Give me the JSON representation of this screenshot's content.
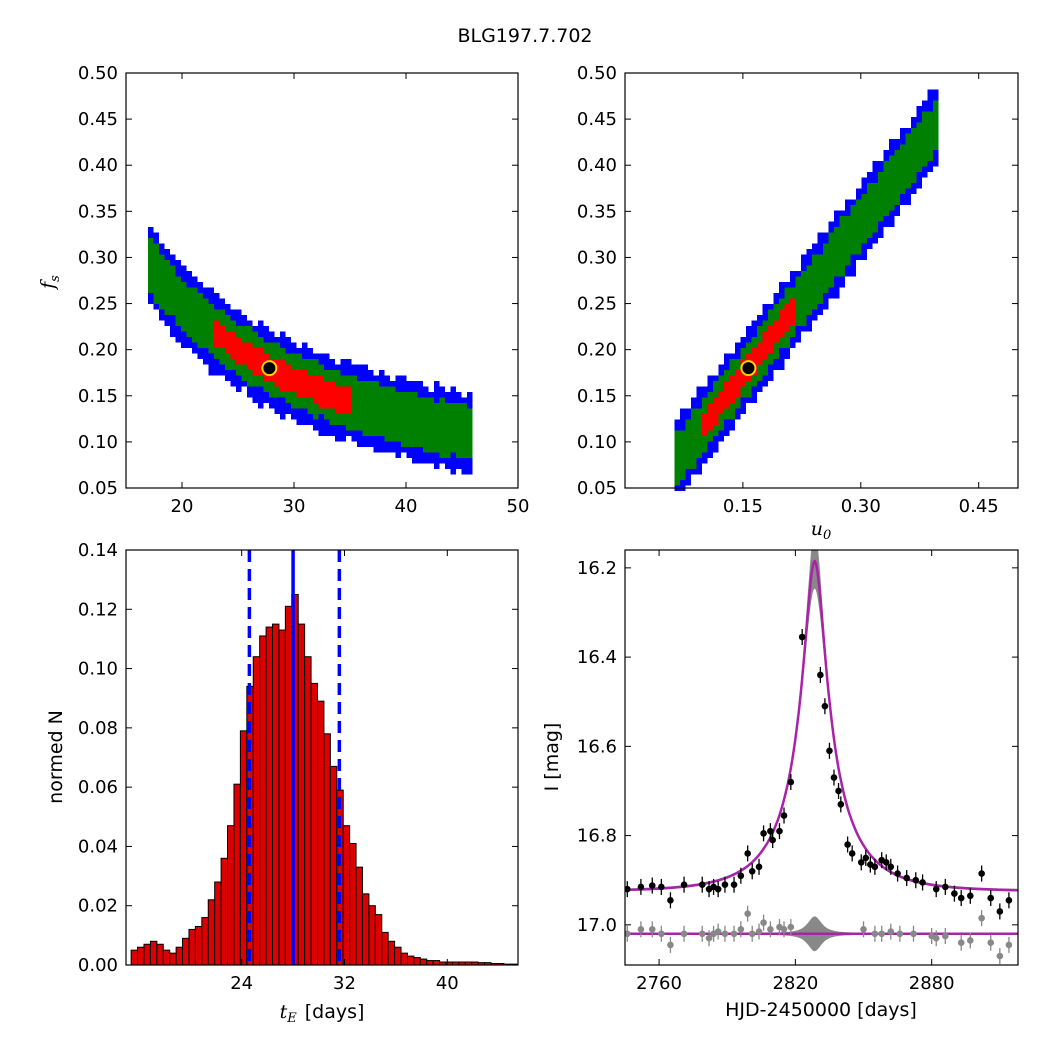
{
  "figure": {
    "title": "BLG197.7.702"
  },
  "chart_data": [
    {
      "id": "fs-vs-tE",
      "type": "heatmap",
      "xlabel": "",
      "ylabel": "f",
      "ylabel_sub": "s",
      "xlim": [
        15,
        50
      ],
      "ylim": [
        0.05,
        0.5
      ],
      "xticks": [
        "20",
        "30",
        "40",
        "50"
      ],
      "xtick_values": [
        20,
        30,
        40,
        50
      ],
      "yticks": [
        "0.05",
        "0.10",
        "0.15",
        "0.20",
        "0.25",
        "0.30",
        "0.35",
        "0.40",
        "0.45",
        "0.50"
      ],
      "ytick_values": [
        0.05,
        0.1,
        0.15,
        0.2,
        0.25,
        0.3,
        0.35,
        0.4,
        0.45,
        0.5
      ],
      "curve": "fs = 5.0 / tE",
      "confidence_colors": [
        "#0000ff",
        "#008000",
        "#ff0000",
        "#000000"
      ],
      "band_widths": [
        0.042,
        0.028,
        0.014,
        0.004
      ],
      "curve_tE_range": [
        17.0,
        46.0
      ],
      "red_tE_range": [
        23.0,
        35.0
      ],
      "black_tE_range": [
        25.5,
        32.0
      ],
      "best_fit": {
        "tE": 27.8,
        "fs": 0.18
      },
      "marker_color": "#ffd700"
    },
    {
      "id": "fs-vs-u0",
      "type": "heatmap",
      "xlabel": "u",
      "xlabel_sub": "0",
      "ylabel": "",
      "xlim": [
        0.0,
        0.5
      ],
      "ylim": [
        0.05,
        0.5
      ],
      "xticks": [
        "0.15",
        "0.30",
        "0.45"
      ],
      "xtick_values": [
        0.15,
        0.3,
        0.45
      ],
      "yticks": [
        "0.05",
        "0.10",
        "0.15",
        "0.20",
        "0.25",
        "0.30",
        "0.35",
        "0.40",
        "0.45",
        "0.50"
      ],
      "ytick_values": [
        0.05,
        0.1,
        0.15,
        0.2,
        0.25,
        0.3,
        0.35,
        0.4,
        0.45,
        0.5
      ],
      "curve": "fs = 1.1 * u0 + 0.0074",
      "curve_u0_range": [
        0.063,
        0.4
      ],
      "red_u0_range": [
        0.1,
        0.215
      ],
      "black_u0_range": [
        0.12,
        0.19
      ],
      "confidence_colors": [
        "#0000ff",
        "#008000",
        "#ff0000",
        "#000000"
      ],
      "best_fit": {
        "u0": 0.157,
        "fs": 0.18
      },
      "marker_color": "#ffd700"
    },
    {
      "id": "tE-histogram",
      "type": "bar",
      "xlabel": "t",
      "xlabel_sub": "E",
      "xlabel_unit": "[days]",
      "ylabel": "normed N",
      "xlim": [
        15,
        45.5
      ],
      "ylim": [
        0.0,
        0.14
      ],
      "xticks": [
        "24",
        "32",
        "40"
      ],
      "xtick_values": [
        24,
        32,
        40
      ],
      "yticks": [
        "0.00",
        "0.02",
        "0.04",
        "0.06",
        "0.08",
        "0.10",
        "0.12",
        "0.14"
      ],
      "ytick_values": [
        0.0,
        0.02,
        0.04,
        0.06,
        0.08,
        0.1,
        0.12,
        0.14
      ],
      "bin_start": 15.4,
      "bin_width": 0.5,
      "values": [
        0.005,
        0.006,
        0.007,
        0.008,
        0.007,
        0.005,
        0.004,
        0.006,
        0.009,
        0.012,
        0.013,
        0.016,
        0.022,
        0.028,
        0.036,
        0.047,
        0.061,
        0.079,
        0.094,
        0.104,
        0.111,
        0.114,
        0.115,
        0.113,
        0.121,
        0.125,
        0.115,
        0.104,
        0.095,
        0.089,
        0.078,
        0.067,
        0.059,
        0.047,
        0.041,
        0.033,
        0.024,
        0.02,
        0.017,
        0.011,
        0.008,
        0.006,
        0.004,
        0.003,
        0.0025,
        0.002,
        0.0015,
        0.0015,
        0.001,
        0.001,
        0.001,
        0.001,
        0.001,
        0.001,
        0.0008,
        0.0008,
        0.0005,
        0.0005,
        0.0003,
        0.0003,
        0.0002
      ],
      "bar_color": "#dd0000",
      "median": 28.0,
      "lower": 24.6,
      "upper": 31.6,
      "line_color": "#0000ff"
    },
    {
      "id": "lightcurve",
      "type": "scatter",
      "xlabel": "HJD-2450000 [days]",
      "ylabel": "I [mag]",
      "xlim": [
        2745,
        2918
      ],
      "ylim": [
        17.09,
        16.16
      ],
      "y_inverted": true,
      "xticks": [
        "2760",
        "2820",
        "2880"
      ],
      "xtick_values": [
        2760,
        2820,
        2880
      ],
      "yticks": [
        "16.2",
        "16.4",
        "16.6",
        "16.8",
        "17.0"
      ],
      "ytick_values": [
        16.2,
        16.4,
        16.6,
        16.8,
        17.0
      ],
      "model": {
        "t0": 2828.5,
        "tE": 28.0,
        "u0": 0.157,
        "fs": 0.18,
        "baseline": 16.925
      },
      "model_color": "#aa22aa",
      "band_color": "#888888",
      "residual_baseline": 17.02,
      "series": [
        {
          "name": "",
          "color": "#000000",
          "x": [
            2746,
            2752,
            2757,
            2761,
            2765,
            2771,
            2779,
            2782,
            2784,
            2786,
            2789,
            2793,
            2796,
            2799,
            2801,
            2804,
            2806,
            2809,
            2810,
            2813,
            2815,
            2818,
            2823,
            2831,
            2833,
            2835,
            2837,
            2839,
            2840,
            2843,
            2845,
            2849,
            2851,
            2853,
            2855,
            2858,
            2860,
            2862,
            2865,
            2869,
            2873,
            2876,
            2882,
            2886,
            2890,
            2893,
            2897,
            2902,
            2906,
            2910,
            2914
          ],
          "y": [
            16.92,
            16.915,
            16.912,
            16.915,
            16.945,
            16.91,
            16.91,
            16.92,
            16.915,
            16.92,
            16.91,
            16.91,
            16.89,
            16.84,
            16.88,
            16.87,
            16.795,
            16.79,
            16.81,
            16.79,
            16.755,
            16.68,
            16.355,
            16.44,
            16.51,
            16.61,
            16.67,
            16.7,
            16.73,
            16.82,
            16.84,
            16.86,
            16.85,
            16.865,
            16.87,
            16.855,
            16.86,
            16.87,
            16.885,
            16.895,
            16.9,
            16.905,
            16.92,
            16.915,
            16.93,
            16.94,
            16.935,
            16.885,
            16.94,
            16.97,
            16.945
          ]
        },
        {
          "name": "",
          "color": "#888888",
          "x": [
            2746,
            2752,
            2757,
            2761,
            2765,
            2771,
            2779,
            2782,
            2784,
            2786,
            2789,
            2793,
            2796,
            2799,
            2801,
            2804,
            2806,
            2809,
            2813,
            2815,
            2818,
            2850,
            2855,
            2858,
            2862,
            2866,
            2872,
            2880,
            2882,
            2886,
            2893,
            2897,
            2902,
            2906,
            2910,
            2914
          ],
          "y": [
            17.02,
            17.01,
            17.01,
            17.02,
            17.045,
            17.02,
            17.02,
            17.03,
            17.02,
            17.015,
            17.02,
            17.02,
            17.01,
            16.975,
            17.02,
            17.015,
            16.995,
            17.01,
            17.005,
            17.01,
            17.005,
            17.01,
            17.02,
            17.02,
            17.015,
            17.02,
            17.02,
            17.025,
            17.03,
            17.025,
            17.04,
            17.035,
            16.985,
            17.04,
            17.07,
            17.045
          ]
        }
      ]
    }
  ]
}
